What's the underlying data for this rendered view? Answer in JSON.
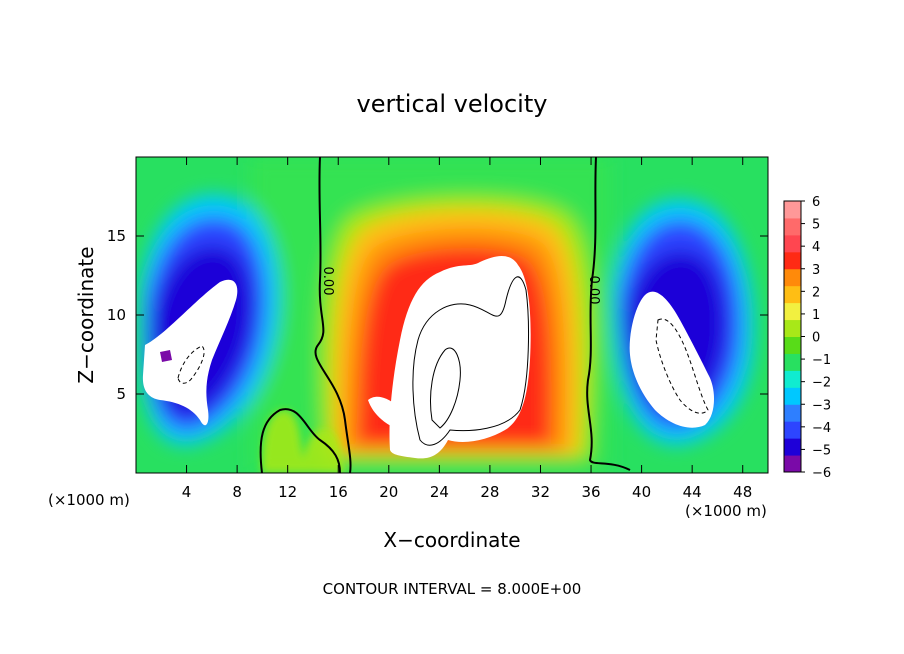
{
  "chart_data": {
    "type": "heatmap",
    "title": "vertical velocity",
    "xlabel": "X−coordinate",
    "ylabel": "Z−coordinate",
    "x_unit_left": "(×1000 m)",
    "x_unit_right": "(×1000 m)",
    "footer": "CONTOUR INTERVAL = 8.000E+00",
    "xlim": [
      0,
      50
    ],
    "ylim": [
      0,
      20
    ],
    "x_ticks": [
      4,
      8,
      12,
      16,
      20,
      24,
      28,
      32,
      36,
      40,
      44,
      48
    ],
    "y_ticks": [
      5,
      10,
      15
    ],
    "contour_label": "0.00",
    "colorbar": {
      "ticks": [
        "6",
        "5",
        "4",
        "3",
        "2",
        "1",
        "0",
        "−1",
        "−2",
        "−3",
        "−4",
        "−5",
        "−6"
      ],
      "range": [
        -6,
        6
      ],
      "saturation_color_high": "#ffffff",
      "colors": [
        "#7a0aa8",
        "#1e00d8",
        "#2d45ff",
        "#2e7fff",
        "#00c8ff",
        "#10ecd0",
        "#28e060",
        "#58dc18",
        "#a8e818",
        "#f2f040",
        "#ffbe14",
        "#ff8a0a",
        "#ff2a14",
        "#ff4650",
        "#ff6a6a",
        "#ff9898"
      ]
    },
    "features": [
      {
        "name": "downdraft-left",
        "x_range": [
          1,
          12
        ],
        "z_range": [
          1,
          17.5
        ],
        "min": "below -6"
      },
      {
        "name": "updraft-center",
        "x_range": [
          15,
          35
        ],
        "z_range": [
          0.5,
          18
        ],
        "max": "above 6"
      },
      {
        "name": "downdraft-right",
        "x_range": [
          37,
          49
        ],
        "z_range": [
          1,
          17.5
        ],
        "min": "below -6"
      }
    ]
  }
}
